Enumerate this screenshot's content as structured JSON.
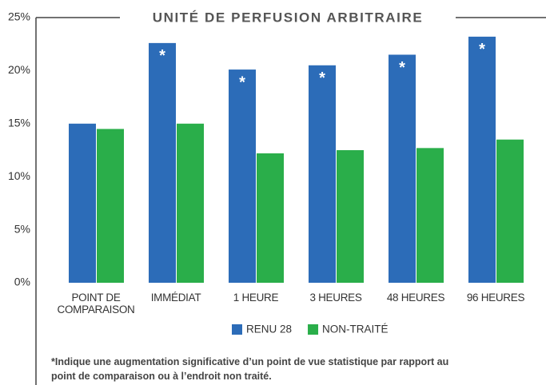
{
  "chart_data": {
    "type": "bar",
    "title": "UNITÉ DE PERFUSION ARBITRAIRE",
    "categories": [
      "POINT DE COMPARAISON",
      "IMMÉDIAT",
      "1 HEURE",
      "3 HEURES",
      "48 HEURES",
      "96 HEURES"
    ],
    "series": [
      {
        "name": "RENU 28",
        "color": "#2c6cb8",
        "values": [
          15,
          22.6,
          20.1,
          20.5,
          21.5,
          23.2
        ]
      },
      {
        "name": "NON-TRAITÉ",
        "color": "#2aae4a",
        "values": [
          14.5,
          15,
          12.2,
          12.5,
          12.7,
          13.5
        ]
      }
    ],
    "significance_marker": "*",
    "significant": [
      false,
      true,
      true,
      true,
      true,
      true
    ],
    "ylim": [
      0,
      25
    ],
    "yticks": [
      {
        "value": 0,
        "label": "0%"
      },
      {
        "value": 5,
        "label": "5%"
      },
      {
        "value": 10,
        "label": "10%"
      },
      {
        "value": 15,
        "label": "15%"
      },
      {
        "value": 20,
        "label": "20%"
      },
      {
        "value": 25,
        "label": "25%"
      }
    ],
    "grid": false,
    "footnote": [
      "*Indique une augmentation significative d’un point de vue statistique par rapport au",
      "point de comparaison ou à l’endroit non traité."
    ]
  }
}
